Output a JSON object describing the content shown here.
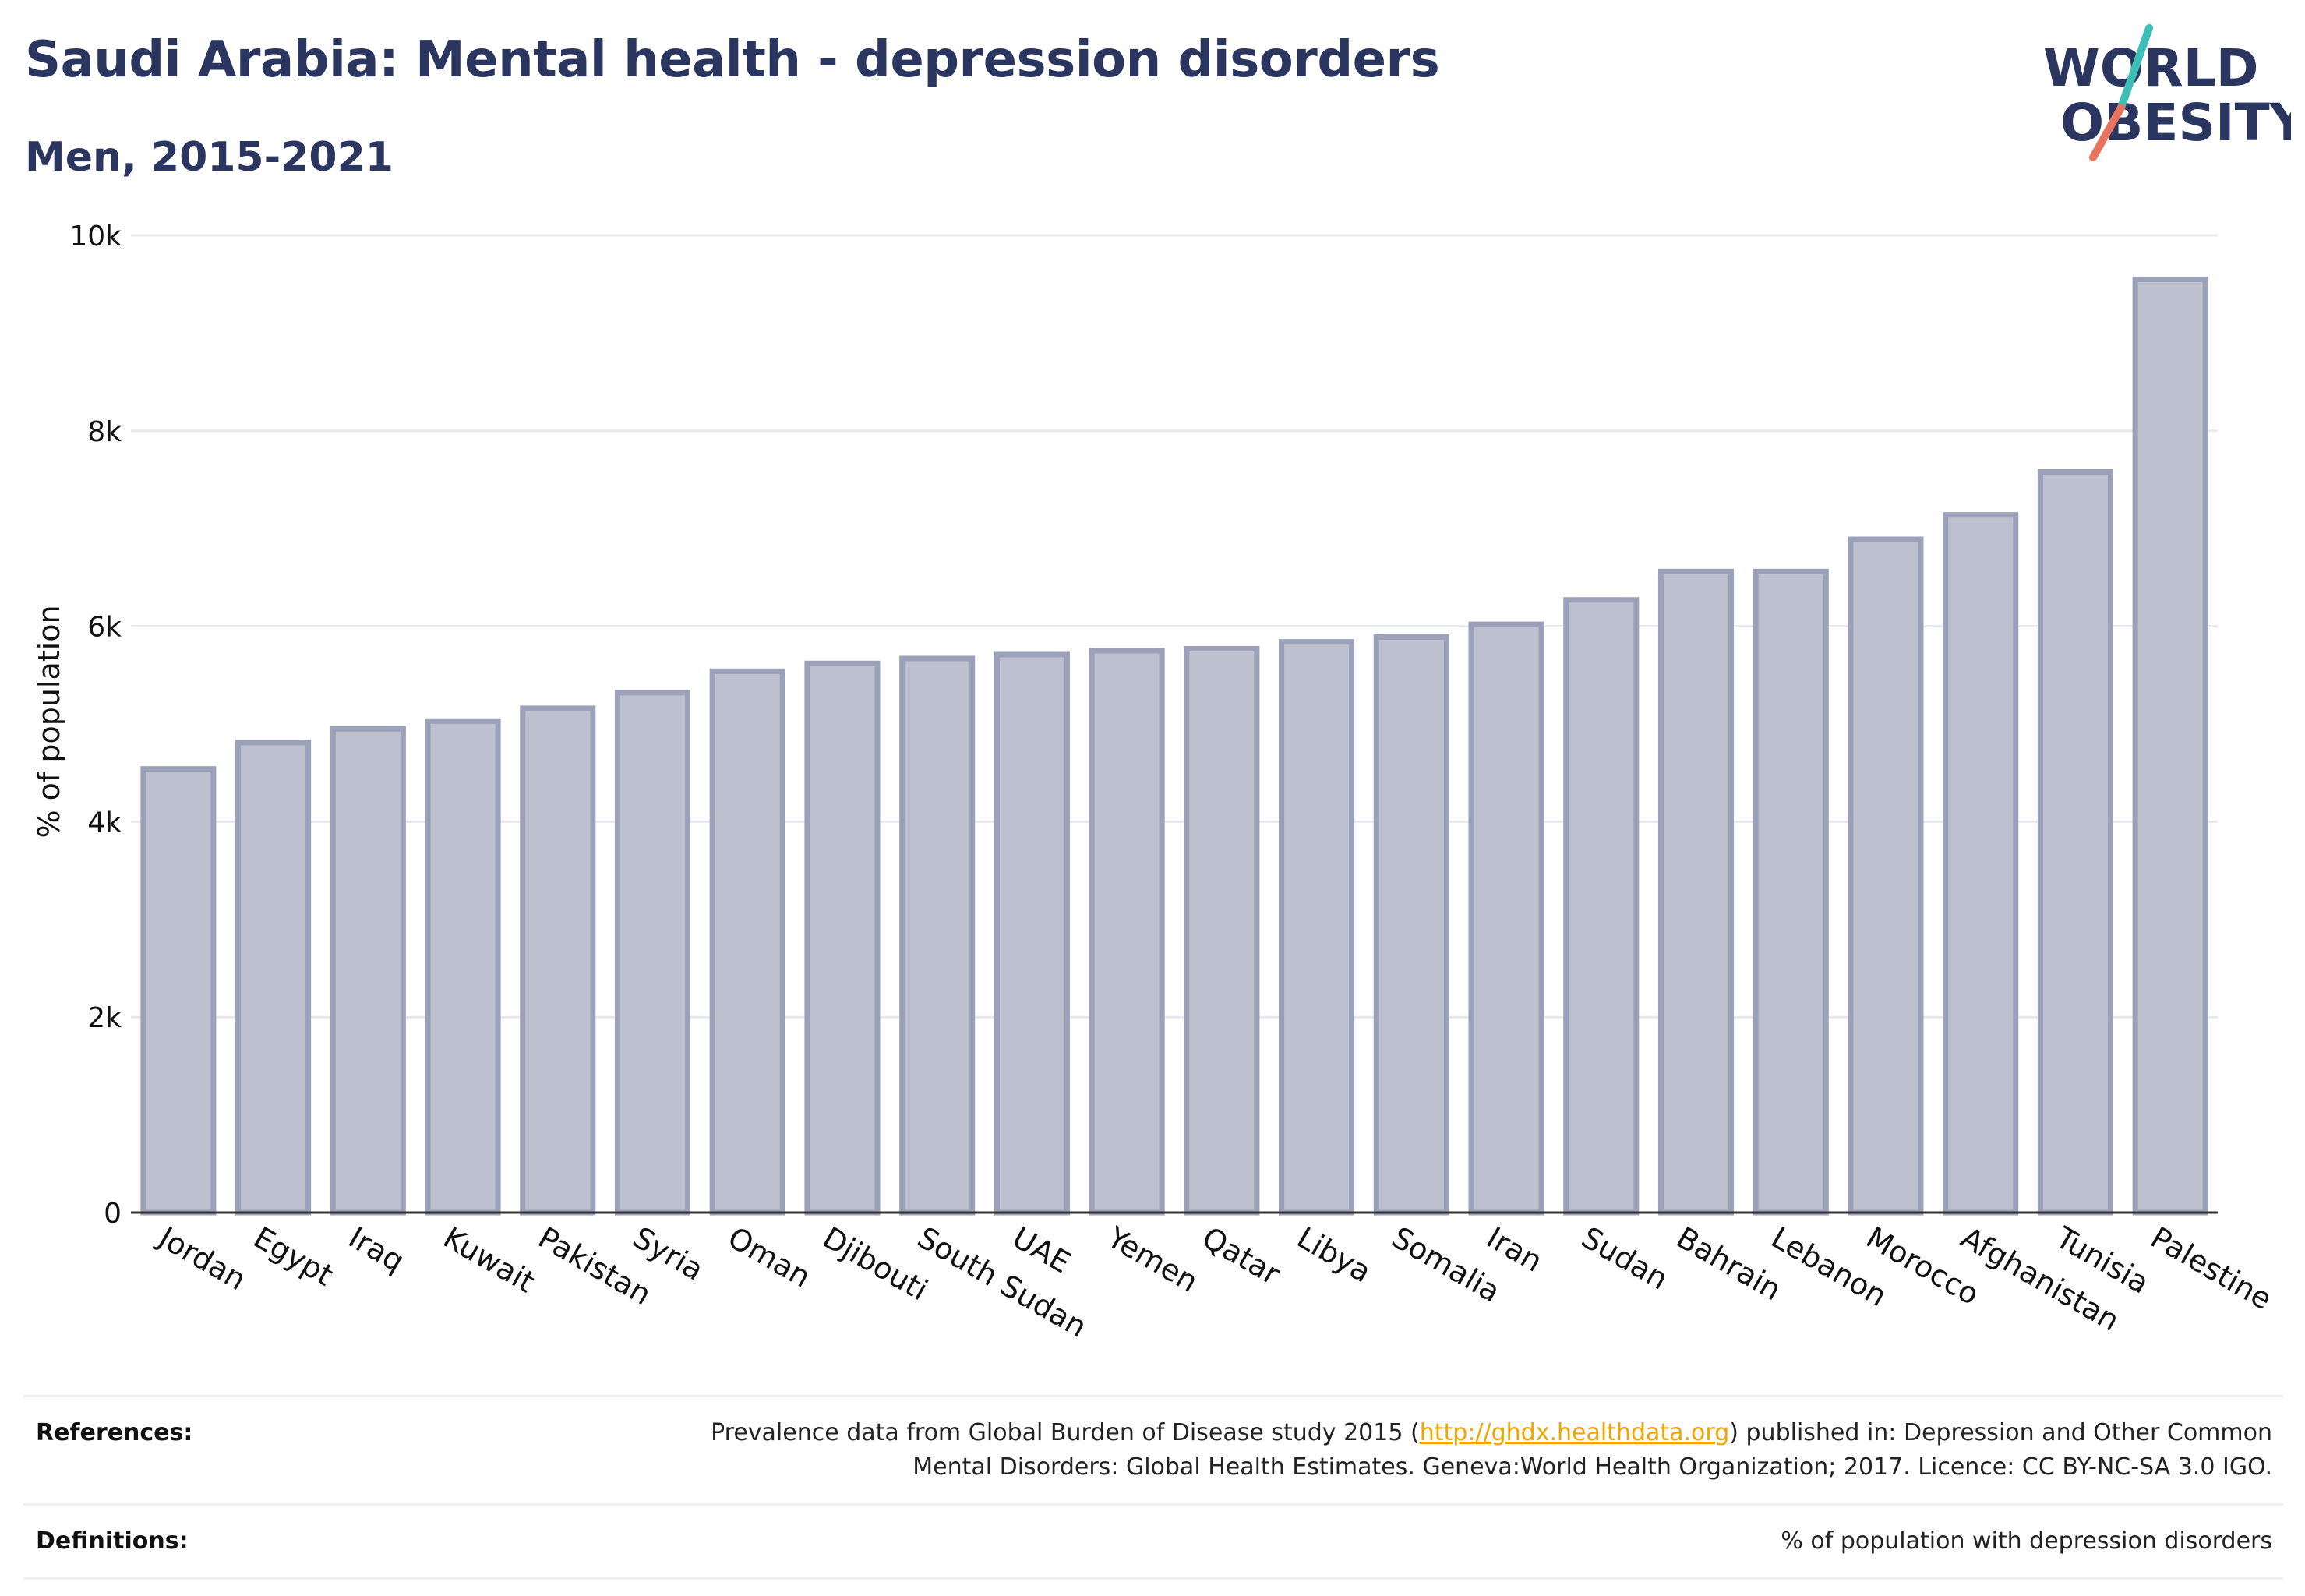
{
  "title": "Saudi Arabia: Mental health - depression disorders",
  "subtitle": "Men, 2015-2021",
  "logo": {
    "line1": "WORLD",
    "line2": "OBESITY",
    "colors": {
      "text": "#2a3560",
      "slash_top": "#3dbfb8",
      "slash_bottom": "#e8735f"
    }
  },
  "colors": {
    "bar_fill": "#bcc0cf",
    "bar_stroke": "#9ba1b8",
    "title": "#2a3560",
    "grid": "#e6e8ee",
    "link": "#f0a500"
  },
  "chart_data": {
    "type": "bar",
    "title": "Saudi Arabia: Mental health - depression disorders",
    "subtitle": "Men, 2015-2021",
    "xlabel": "",
    "ylabel": "% of population",
    "ylim": [
      0,
      10000
    ],
    "yticks": [
      0,
      2000,
      4000,
      6000,
      8000,
      10000
    ],
    "ytick_labels": [
      "0",
      "2k",
      "4k",
      "6k",
      "8k",
      "10k"
    ],
    "grid": true,
    "categories": [
      "Jordan",
      "Egypt",
      "Iraq",
      "Kuwait",
      "Pakistan",
      "Syria",
      "Oman",
      "Djibouti",
      "South Sudan",
      "UAE",
      "Yemen",
      "Qatar",
      "Libya",
      "Somalia",
      "Iran",
      "Sudan",
      "Bahrain",
      "Lebanon",
      "Morocco",
      "Afghanistan",
      "Tunisia",
      "Palestine"
    ],
    "values": [
      4540,
      4810,
      4950,
      5030,
      5160,
      5320,
      5540,
      5620,
      5670,
      5710,
      5750,
      5770,
      5840,
      5890,
      6020,
      6270,
      6560,
      6560,
      6890,
      7140,
      7580,
      9550
    ]
  },
  "footer": {
    "references_label": "References:",
    "references_pre": "Prevalence data from Global Burden of Disease study 2015 (",
    "references_link": "http://ghdx.healthdata.org",
    "references_post_line1": ") published in: Depression and Other Common",
    "references_line2": "Mental Disorders: Global Health Estimates. Geneva:World Health Organization; 2017. Licence: CC BY-NC-SA 3.0 IGO.",
    "definitions_label": "Definitions:",
    "definitions_text": "% of population with depression disorders"
  }
}
